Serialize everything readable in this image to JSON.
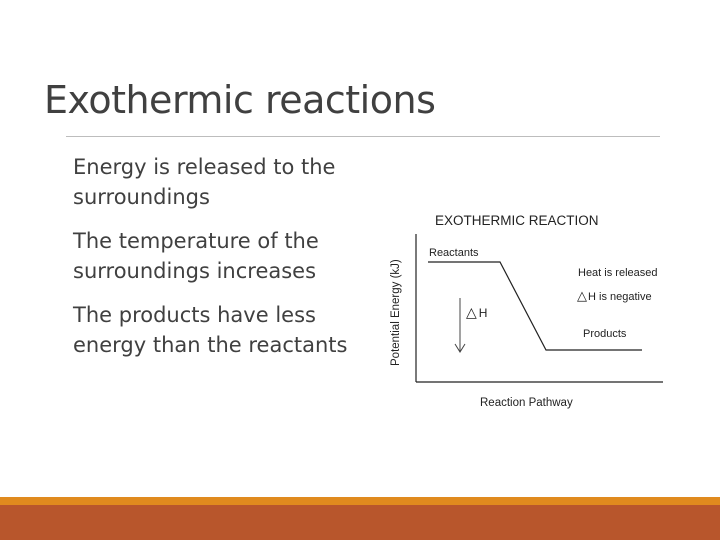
{
  "slide": {
    "title": "Exothermic reactions",
    "bullets": [
      "Energy is released to the surroundings",
      "The temperature of the surroundings increases",
      "The products have less energy than the reactants"
    ]
  },
  "diagram": {
    "title": "EXOTHERMIC REACTION",
    "y_axis_label": "Potential Energy (kJ)",
    "x_axis_label": "Reaction Pathway",
    "reactants_label": "Reactants",
    "products_label": "Products",
    "heat_label": "Heat is released",
    "delta_h_text": "H is negative",
    "delta_h_arrow_text": "H",
    "delta_symbol": "△"
  },
  "colors": {
    "text": "#404040",
    "rule": "#bdbdbd",
    "footer_thin": "#e08a1e",
    "footer": "#b8562c",
    "diagram_line": "#222222"
  }
}
